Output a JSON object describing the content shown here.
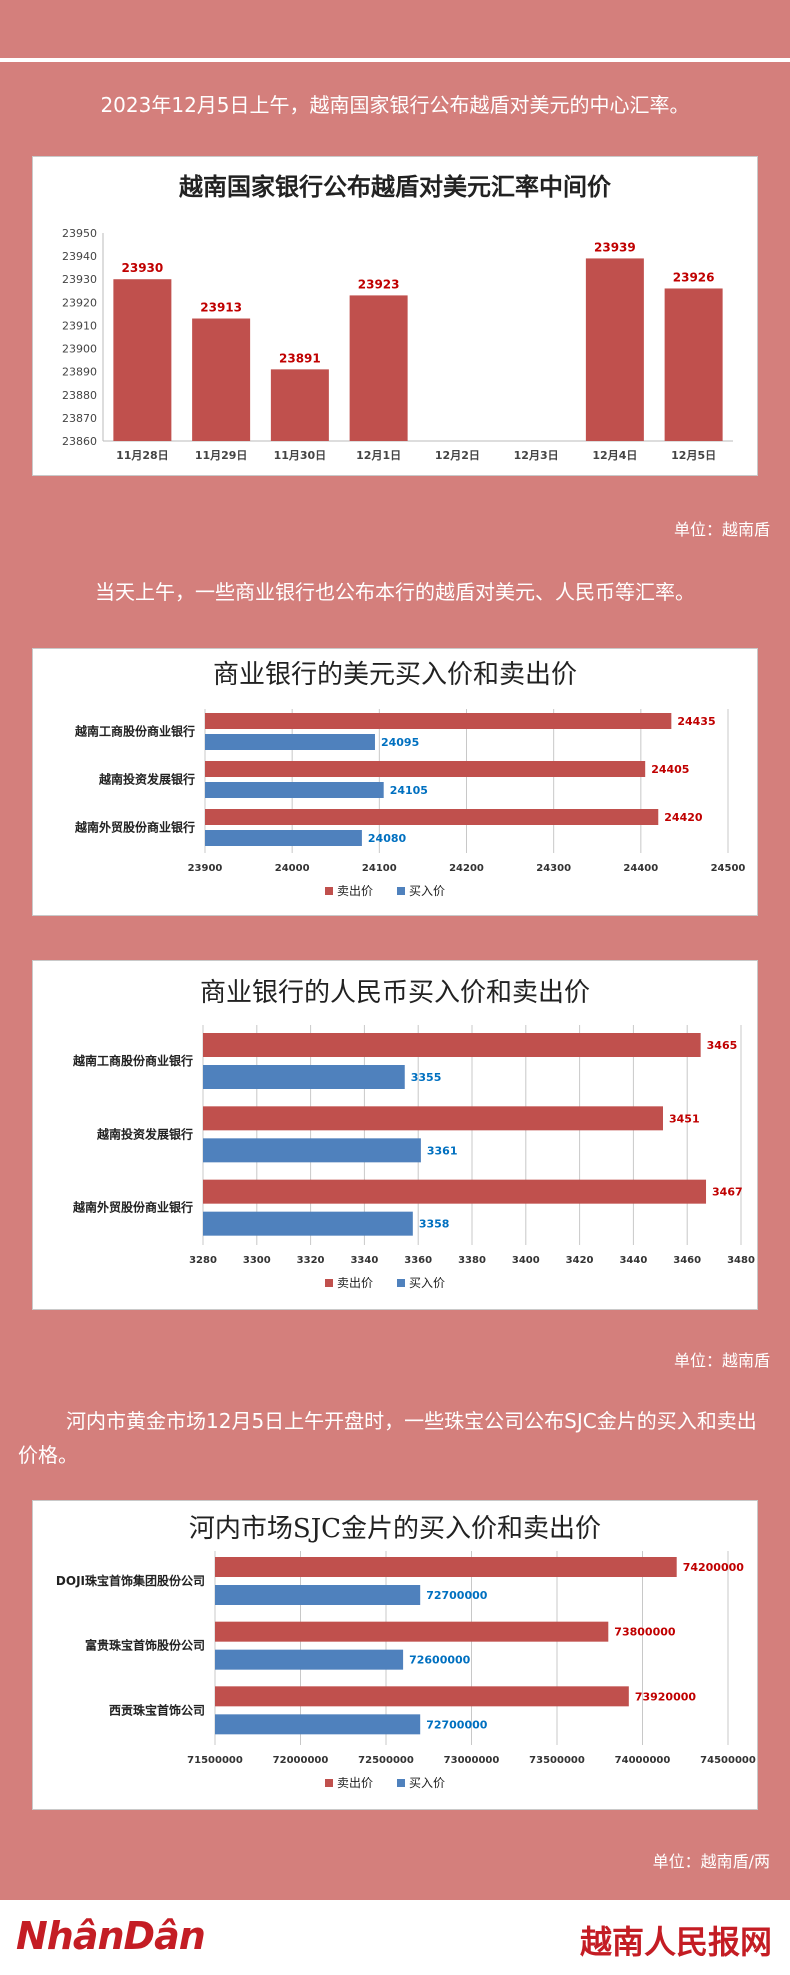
{
  "intro": {
    "text": "2023年12月5日上午，越南国家银行公布越盾对美元的中心汇率。"
  },
  "unit1": "单位：越南盾",
  "intro2": {
    "text": "当天上午，一些商业银行也公布本行的越盾对美元、人民币等汇率。"
  },
  "unit2": "单位：越南盾",
  "intro3": {
    "text": "河内市黄金市场12月5日上午开盘时，一些珠宝公司公布SJC金片的买入和卖出价格。"
  },
  "unit3": "单位：越南盾/两",
  "footer": {
    "logo_left": "NhânDân",
    "logo_right": "越南人民报网"
  },
  "colors": {
    "sell": "#c0504d",
    "buy": "#4f81bd",
    "sell_label": "#c00000",
    "buy_label": "#0070c0"
  },
  "chart_data": [
    {
      "type": "bar",
      "title": "越南国家银行公布越盾对美元汇率中间价",
      "categories": [
        "11月28日",
        "11月29日",
        "11月30日",
        "12月1日",
        "12月2日",
        "12月3日",
        "12月4日",
        "12月5日"
      ],
      "values": [
        23930,
        23913,
        23891,
        23923,
        null,
        null,
        23939,
        23926
      ],
      "ylim": [
        23860,
        23950
      ],
      "yticks": [
        23860,
        23870,
        23880,
        23890,
        23900,
        23910,
        23920,
        23930,
        23940,
        23950
      ],
      "grid": false
    },
    {
      "type": "bar",
      "orientation": "horizontal",
      "title": "商业银行的美元买入价和卖出价",
      "categories": [
        "越南工商股份商业银行",
        "越南投资发展银行",
        "越南外贸股份商业银行"
      ],
      "series": [
        {
          "name": "卖出价",
          "values": [
            24435,
            24405,
            24420
          ]
        },
        {
          "name": "买入价",
          "values": [
            24095,
            24105,
            24080
          ]
        }
      ],
      "xlim": [
        23900,
        24500
      ],
      "xticks": [
        23900,
        24000,
        24100,
        24200,
        24300,
        24400,
        24500
      ],
      "legend": "bottom"
    },
    {
      "type": "bar",
      "orientation": "horizontal",
      "title": "商业银行的人民币买入价和卖出价",
      "categories": [
        "越南工商股份商业银行",
        "越南投资发展银行",
        "越南外贸股份商业银行"
      ],
      "series": [
        {
          "name": "卖出价",
          "values": [
            3465,
            3451,
            3467
          ]
        },
        {
          "name": "买入价",
          "values": [
            3355,
            3361,
            3358
          ]
        }
      ],
      "xlim": [
        3280,
        3480
      ],
      "xticks": [
        3280,
        3300,
        3320,
        3340,
        3360,
        3380,
        3400,
        3420,
        3440,
        3460,
        3480
      ],
      "legend": "bottom"
    },
    {
      "type": "bar",
      "orientation": "horizontal",
      "title": "河内市场SJC金片的买入价和卖出价",
      "categories": [
        "DOJI珠宝首饰集团股份公司",
        "富贵珠宝首饰股份公司",
        "西贡珠宝首饰公司"
      ],
      "series": [
        {
          "name": "卖出价",
          "values": [
            74200000,
            73800000,
            73920000
          ]
        },
        {
          "name": "买入价",
          "values": [
            72700000,
            72600000,
            72700000
          ]
        }
      ],
      "xlim": [
        71500000,
        74500000
      ],
      "xticks": [
        71500000,
        72000000,
        72500000,
        73000000,
        73500000,
        74000000,
        74500000
      ],
      "legend": "bottom"
    }
  ]
}
